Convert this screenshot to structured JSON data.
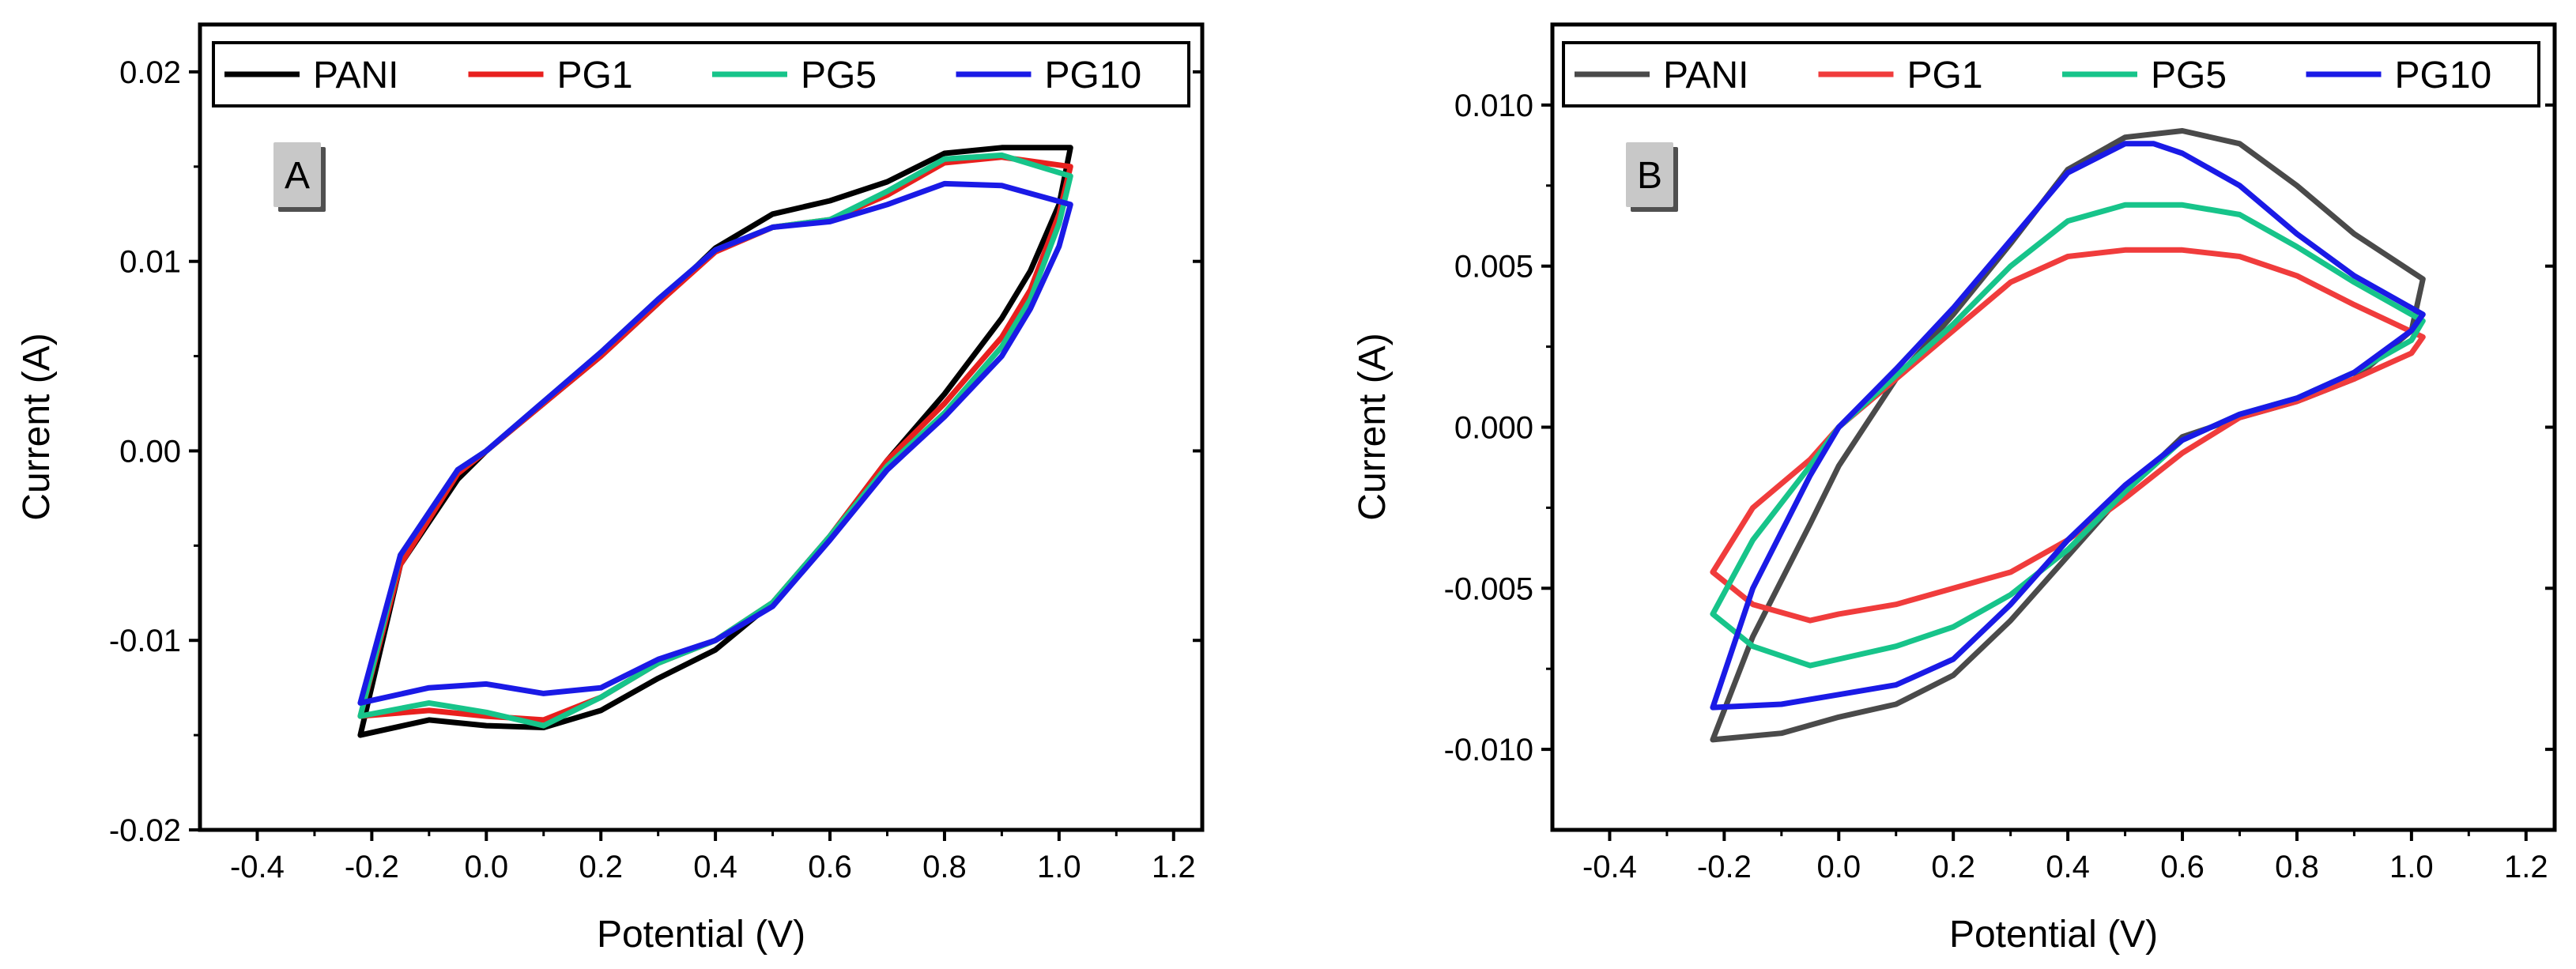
{
  "chart_data": [
    {
      "type": "line",
      "panel_label": "A",
      "xlabel": "Potential (V)",
      "ylabel": "Current (A)",
      "xlim": [
        -0.5,
        1.25
      ],
      "ylim": [
        -0.02,
        0.0225
      ],
      "xticks": [
        -0.4,
        -0.2,
        0.0,
        0.2,
        0.4,
        0.6,
        0.8,
        1.0,
        1.2
      ],
      "xtick_labels": [
        "-0.4",
        "-0.2",
        "0.0",
        "0.2",
        "0.4",
        "0.6",
        "0.8",
        "1.0",
        "1.2"
      ],
      "yticks": [
        -0.02,
        -0.01,
        0.0,
        0.01,
        0.02
      ],
      "ytick_labels": [
        "-0.02",
        "-0.01",
        "0.00",
        "0.01",
        "0.02"
      ],
      "legend": "top",
      "series": [
        {
          "name": "PANI",
          "color": "#000000",
          "points": [
            [
              -0.22,
              -0.015
            ],
            [
              -0.15,
              -0.006
            ],
            [
              -0.05,
              -0.0015
            ],
            [
              0.0,
              0.0
            ],
            [
              0.1,
              0.0025
            ],
            [
              0.2,
              0.005
            ],
            [
              0.3,
              0.0078
            ],
            [
              0.4,
              0.0107
            ],
            [
              0.5,
              0.0125
            ],
            [
              0.6,
              0.0132
            ],
            [
              0.7,
              0.0142
            ],
            [
              0.8,
              0.0157
            ],
            [
              0.9,
              0.016
            ],
            [
              1.02,
              0.016
            ],
            [
              1.0,
              0.013
            ],
            [
              0.95,
              0.0095
            ],
            [
              0.9,
              0.007
            ],
            [
              0.8,
              0.003
            ],
            [
              0.7,
              -0.0005
            ],
            [
              0.6,
              -0.0045
            ],
            [
              0.5,
              -0.008
            ],
            [
              0.4,
              -0.0105
            ],
            [
              0.3,
              -0.012
            ],
            [
              0.2,
              -0.0137
            ],
            [
              0.1,
              -0.0146
            ],
            [
              0.0,
              -0.0145
            ],
            [
              -0.1,
              -0.0142
            ],
            [
              -0.22,
              -0.015
            ]
          ]
        },
        {
          "name": "PG1",
          "color": "#e8201e",
          "points": [
            [
              -0.22,
              -0.014
            ],
            [
              -0.15,
              -0.006
            ],
            [
              -0.05,
              -0.0012
            ],
            [
              0.0,
              0.0
            ],
            [
              0.1,
              0.0025
            ],
            [
              0.2,
              0.005
            ],
            [
              0.3,
              0.0078
            ],
            [
              0.4,
              0.0105
            ],
            [
              0.5,
              0.0118
            ],
            [
              0.6,
              0.0122
            ],
            [
              0.7,
              0.0135
            ],
            [
              0.8,
              0.0152
            ],
            [
              0.9,
              0.0155
            ],
            [
              1.02,
              0.015
            ],
            [
              1.0,
              0.0125
            ],
            [
              0.95,
              0.0085
            ],
            [
              0.9,
              0.006
            ],
            [
              0.8,
              0.0025
            ],
            [
              0.7,
              -0.0005
            ],
            [
              0.6,
              -0.0045
            ],
            [
              0.5,
              -0.008
            ],
            [
              0.4,
              -0.01
            ],
            [
              0.3,
              -0.0112
            ],
            [
              0.2,
              -0.013
            ],
            [
              0.1,
              -0.0142
            ],
            [
              0.0,
              -0.014
            ],
            [
              -0.1,
              -0.0137
            ],
            [
              -0.22,
              -0.014
            ]
          ]
        },
        {
          "name": "PG5",
          "color": "#17c48a",
          "points": [
            [
              -0.22,
              -0.014
            ],
            [
              -0.15,
              -0.0055
            ],
            [
              -0.05,
              -0.001
            ],
            [
              0.0,
              0.0
            ],
            [
              0.1,
              0.0026
            ],
            [
              0.2,
              0.0052
            ],
            [
              0.3,
              0.008
            ],
            [
              0.4,
              0.0106
            ],
            [
              0.5,
              0.0118
            ],
            [
              0.6,
              0.0122
            ],
            [
              0.7,
              0.0137
            ],
            [
              0.8,
              0.0154
            ],
            [
              0.9,
              0.0156
            ],
            [
              1.02,
              0.0145
            ],
            [
              1.0,
              0.012
            ],
            [
              0.95,
              0.008
            ],
            [
              0.9,
              0.0055
            ],
            [
              0.8,
              0.002
            ],
            [
              0.7,
              -0.0008
            ],
            [
              0.6,
              -0.0045
            ],
            [
              0.5,
              -0.008
            ],
            [
              0.4,
              -0.01
            ],
            [
              0.3,
              -0.0112
            ],
            [
              0.2,
              -0.013
            ],
            [
              0.1,
              -0.0145
            ],
            [
              0.0,
              -0.0138
            ],
            [
              -0.1,
              -0.0133
            ],
            [
              -0.22,
              -0.014
            ]
          ]
        },
        {
          "name": "PG10",
          "color": "#1a1ae6",
          "points": [
            [
              -0.22,
              -0.0133
            ],
            [
              -0.15,
              -0.0055
            ],
            [
              -0.05,
              -0.001
            ],
            [
              0.0,
              0.0
            ],
            [
              0.1,
              0.0026
            ],
            [
              0.2,
              0.0052
            ],
            [
              0.3,
              0.008
            ],
            [
              0.4,
              0.0106
            ],
            [
              0.5,
              0.0118
            ],
            [
              0.6,
              0.0121
            ],
            [
              0.7,
              0.013
            ],
            [
              0.8,
              0.0141
            ],
            [
              0.9,
              0.014
            ],
            [
              1.02,
              0.013
            ],
            [
              1.0,
              0.0108
            ],
            [
              0.95,
              0.0075
            ],
            [
              0.9,
              0.005
            ],
            [
              0.8,
              0.0018
            ],
            [
              0.7,
              -0.001
            ],
            [
              0.6,
              -0.0047
            ],
            [
              0.5,
              -0.0082
            ],
            [
              0.4,
              -0.01
            ],
            [
              0.3,
              -0.011
            ],
            [
              0.2,
              -0.0125
            ],
            [
              0.1,
              -0.0128
            ],
            [
              0.0,
              -0.0123
            ],
            [
              -0.1,
              -0.0125
            ],
            [
              -0.22,
              -0.0133
            ]
          ]
        }
      ]
    },
    {
      "type": "line",
      "panel_label": "B",
      "xlabel": "Potential (V)",
      "ylabel": "Current (A)",
      "xlim": [
        -0.5,
        1.25
      ],
      "ylim": [
        -0.0125,
        0.0125
      ],
      "xticks": [
        -0.4,
        -0.2,
        0.0,
        0.2,
        0.4,
        0.6,
        0.8,
        1.0,
        1.2
      ],
      "xtick_labels": [
        "-0.4",
        "-0.2",
        "0.0",
        "0.2",
        "0.4",
        "0.6",
        "0.8",
        "1.0",
        "1.2"
      ],
      "yticks": [
        -0.01,
        -0.005,
        0.0,
        0.005,
        0.01
      ],
      "ytick_labels": [
        "-0.010",
        "-0.005",
        "0.000",
        "0.005",
        "0.010"
      ],
      "legend": "top",
      "series": [
        {
          "name": "PANI",
          "color": "#4a4a4a",
          "points": [
            [
              -0.22,
              -0.0097
            ],
            [
              -0.15,
              -0.0065
            ],
            [
              -0.05,
              -0.003
            ],
            [
              0.0,
              -0.0012
            ],
            [
              0.1,
              0.0015
            ],
            [
              0.2,
              0.0035
            ],
            [
              0.3,
              0.0057
            ],
            [
              0.4,
              0.008
            ],
            [
              0.5,
              0.009
            ],
            [
              0.6,
              0.0092
            ],
            [
              0.7,
              0.0088
            ],
            [
              0.8,
              0.0075
            ],
            [
              0.9,
              0.006
            ],
            [
              1.02,
              0.0046
            ],
            [
              1.0,
              0.003
            ],
            [
              0.9,
              0.0015
            ],
            [
              0.8,
              0.0008
            ],
            [
              0.7,
              0.0003
            ],
            [
              0.6,
              -0.0003
            ],
            [
              0.5,
              -0.002
            ],
            [
              0.4,
              -0.004
            ],
            [
              0.3,
              -0.006
            ],
            [
              0.2,
              -0.0077
            ],
            [
              0.1,
              -0.0086
            ],
            [
              0.0,
              -0.009
            ],
            [
              -0.1,
              -0.0095
            ],
            [
              -0.22,
              -0.0097
            ]
          ]
        },
        {
          "name": "PG1",
          "color": "#f03c3c",
          "points": [
            [
              -0.22,
              -0.0045
            ],
            [
              -0.15,
              -0.0025
            ],
            [
              -0.05,
              -0.001
            ],
            [
              0.0,
              0.0
            ],
            [
              0.1,
              0.0015
            ],
            [
              0.2,
              0.003
            ],
            [
              0.3,
              0.0045
            ],
            [
              0.4,
              0.0053
            ],
            [
              0.5,
              0.0055
            ],
            [
              0.6,
              0.0055
            ],
            [
              0.7,
              0.0053
            ],
            [
              0.8,
              0.0047
            ],
            [
              0.9,
              0.0038
            ],
            [
              1.02,
              0.0028
            ],
            [
              1.0,
              0.0023
            ],
            [
              0.9,
              0.0015
            ],
            [
              0.8,
              0.0008
            ],
            [
              0.7,
              0.0003
            ],
            [
              0.6,
              -0.0008
            ],
            [
              0.5,
              -0.0022
            ],
            [
              0.4,
              -0.0035
            ],
            [
              0.3,
              -0.0045
            ],
            [
              0.2,
              -0.005
            ],
            [
              0.1,
              -0.0055
            ],
            [
              0.0,
              -0.0058
            ],
            [
              -0.05,
              -0.006
            ],
            [
              -0.15,
              -0.0055
            ],
            [
              -0.22,
              -0.0045
            ]
          ]
        },
        {
          "name": "PG5",
          "color": "#17c48a",
          "points": [
            [
              -0.22,
              -0.0058
            ],
            [
              -0.15,
              -0.0035
            ],
            [
              -0.05,
              -0.0012
            ],
            [
              0.0,
              0.0
            ],
            [
              0.1,
              0.0016
            ],
            [
              0.2,
              0.0032
            ],
            [
              0.3,
              0.005
            ],
            [
              0.4,
              0.0064
            ],
            [
              0.5,
              0.0069
            ],
            [
              0.6,
              0.0069
            ],
            [
              0.7,
              0.0066
            ],
            [
              0.8,
              0.0056
            ],
            [
              0.9,
              0.0045
            ],
            [
              1.02,
              0.0033
            ],
            [
              1.0,
              0.0027
            ],
            [
              0.9,
              0.0017
            ],
            [
              0.8,
              0.0009
            ],
            [
              0.7,
              0.0004
            ],
            [
              0.6,
              -0.0004
            ],
            [
              0.5,
              -0.002
            ],
            [
              0.4,
              -0.0038
            ],
            [
              0.3,
              -0.0052
            ],
            [
              0.2,
              -0.0062
            ],
            [
              0.1,
              -0.0068
            ],
            [
              0.0,
              -0.0072
            ],
            [
              -0.05,
              -0.0074
            ],
            [
              -0.15,
              -0.0068
            ],
            [
              -0.22,
              -0.0058
            ]
          ]
        },
        {
          "name": "PG10",
          "color": "#1a1ae6",
          "points": [
            [
              -0.22,
              -0.0087
            ],
            [
              -0.15,
              -0.005
            ],
            [
              -0.05,
              -0.0015
            ],
            [
              0.0,
              0.0
            ],
            [
              0.1,
              0.0018
            ],
            [
              0.2,
              0.0037
            ],
            [
              0.3,
              0.0058
            ],
            [
              0.4,
              0.0079
            ],
            [
              0.5,
              0.0088
            ],
            [
              0.55,
              0.0088
            ],
            [
              0.6,
              0.0085
            ],
            [
              0.7,
              0.0075
            ],
            [
              0.8,
              0.006
            ],
            [
              0.9,
              0.0047
            ],
            [
              1.02,
              0.0035
            ],
            [
              1.0,
              0.003
            ],
            [
              0.9,
              0.0017
            ],
            [
              0.8,
              0.0009
            ],
            [
              0.7,
              0.0004
            ],
            [
              0.6,
              -0.0004
            ],
            [
              0.5,
              -0.0018
            ],
            [
              0.4,
              -0.0035
            ],
            [
              0.3,
              -0.0055
            ],
            [
              0.2,
              -0.0072
            ],
            [
              0.1,
              -0.008
            ],
            [
              0.0,
              -0.0083
            ],
            [
              -0.1,
              -0.0086
            ],
            [
              -0.22,
              -0.0087
            ]
          ]
        }
      ]
    }
  ]
}
